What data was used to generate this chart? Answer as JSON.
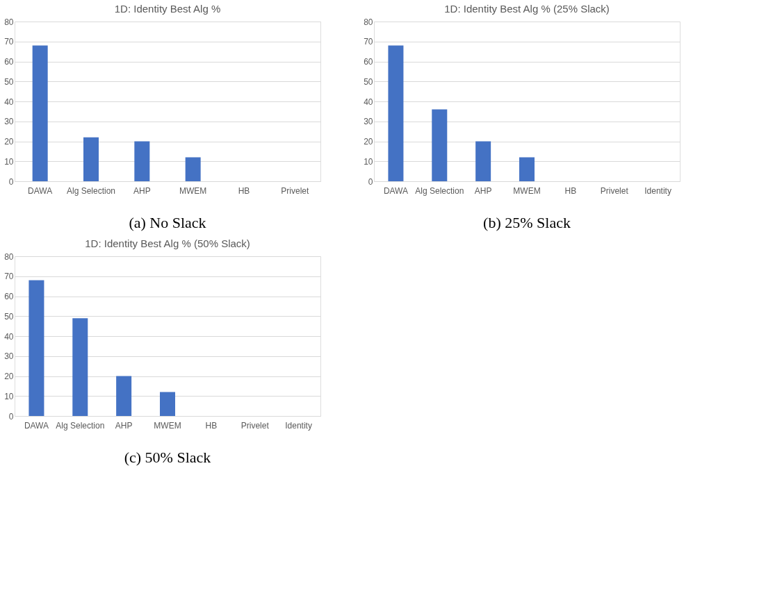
{
  "chart_data": [
    {
      "type": "bar",
      "title": "1D: Identity Best Alg %",
      "categories": [
        "DAWA",
        "Alg Selection",
        "AHP",
        "MWEM",
        "HB",
        "Privelet"
      ],
      "values": [
        68,
        22,
        20,
        12,
        0,
        0
      ],
      "color": "#4472c4",
      "ylim": [
        0,
        80
      ],
      "yticks": [
        0,
        10,
        20,
        30,
        40,
        50,
        60,
        70,
        80
      ],
      "grid": "y",
      "annotations": [
        "(a) No Slack"
      ]
    },
    {
      "type": "bar",
      "title": "1D:  Identity Best Alg % (25% Slack)",
      "categories": [
        "DAWA",
        "Alg Selection",
        "AHP",
        "MWEM",
        "HB",
        "Privelet",
        "Identity"
      ],
      "values": [
        68,
        36,
        20,
        12,
        0,
        0,
        0
      ],
      "color": "#4472c4",
      "ylim": [
        0,
        80
      ],
      "yticks": [
        0,
        10,
        20,
        30,
        40,
        50,
        60,
        70,
        80
      ],
      "grid": "y",
      "annotations": [
        "(b) 25% Slack"
      ]
    },
    {
      "type": "bar",
      "title": "1D:  Identity Best Alg % (50% Slack)",
      "categories": [
        "DAWA",
        "Alg Selection",
        "AHP",
        "MWEM",
        "HB",
        "Privelet",
        "Identity"
      ],
      "values": [
        68,
        49,
        20,
        12,
        0,
        0,
        0
      ],
      "color": "#4472c4",
      "ylim": [
        0,
        80
      ],
      "yticks": [
        0,
        10,
        20,
        30,
        40,
        50,
        60,
        70,
        80
      ],
      "grid": "y",
      "annotations": [
        "(c) 50% Slack"
      ]
    }
  ]
}
